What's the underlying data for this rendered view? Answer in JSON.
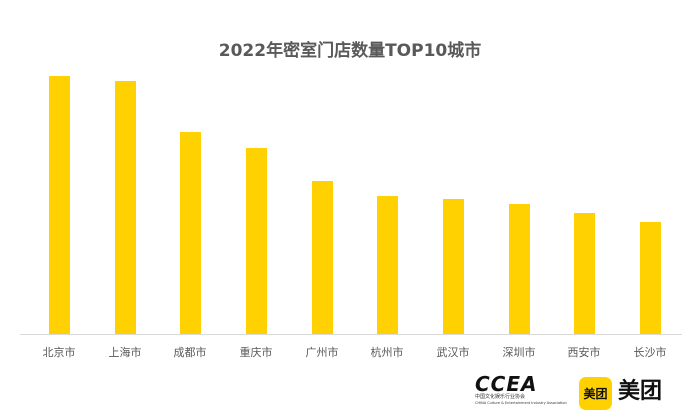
{
  "chart_data": {
    "type": "bar",
    "title": "2022年密室门店数量TOP10城市",
    "xlabel": "",
    "ylabel": "",
    "grid": false,
    "legend": null,
    "categories": [
      "北京市",
      "上海市",
      "成都市",
      "重庆市",
      "广州市",
      "杭州市",
      "武汉市",
      "深圳市",
      "西安市",
      "长沙市"
    ],
    "values": [
      258,
      253,
      202,
      186,
      153,
      138,
      135,
      130,
      121,
      112
    ],
    "value_note": "relative bar heights in pixels; no axis values shown",
    "ylim": [
      0,
      274
    ],
    "bar_color": "#ffd100"
  },
  "logos": {
    "ccea_main": "CCEA",
    "ccea_cn": "中国文化娱乐行业协会",
    "ccea_en": "CHINA Culture & Entertainment Industry Association",
    "meituan_badge": "美团",
    "meituan_text": "美团"
  }
}
